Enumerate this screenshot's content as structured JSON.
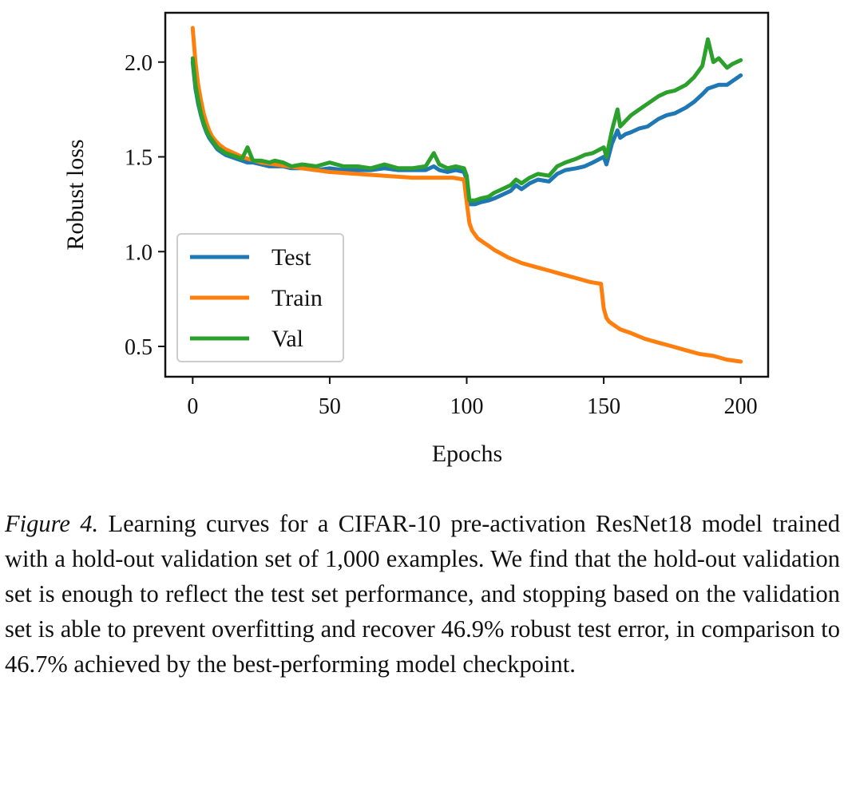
{
  "figure": {
    "caption_label": "Figure 4.",
    "caption_text": " Learning curves for a CIFAR-10 pre-activation ResNet18 model trained with a hold-out validation set of 1,000 examples. We find that the hold-out validation set is enough to reflect the test set performance, and stopping based on the validation set is able to prevent overfitting and recover 46.9% robust test error, in comparison to 46.7% achieved by the best-performing model checkpoint."
  },
  "chart_data": {
    "type": "line",
    "title": "",
    "xlabel": "Epochs",
    "ylabel": "Robust loss",
    "xlim": [
      -10,
      210
    ],
    "ylim": [
      0.34,
      2.26
    ],
    "xticks": [
      0,
      50,
      100,
      150,
      200
    ],
    "xtick_labels": [
      "0",
      "50",
      "100",
      "150",
      "200"
    ],
    "yticks": [
      0.5,
      1.0,
      1.5,
      2.0
    ],
    "ytick_labels": [
      "0.5",
      "1.0",
      "1.5",
      "2.0"
    ],
    "grid": false,
    "legend_position": "lower-left",
    "series": [
      {
        "name": "Test",
        "color": "#1f77b4",
        "x": [
          0,
          1,
          2,
          3,
          4,
          5,
          6,
          7,
          8,
          9,
          10,
          12,
          14,
          16,
          18,
          20,
          22,
          25,
          28,
          30,
          33,
          36,
          40,
          45,
          50,
          55,
          60,
          65,
          70,
          75,
          80,
          85,
          88,
          90,
          93,
          96,
          99,
          100,
          101,
          103,
          105,
          108,
          110,
          113,
          116,
          118,
          120,
          123,
          126,
          130,
          133,
          136,
          140,
          143,
          146,
          150,
          151,
          153,
          155,
          156,
          158,
          160,
          163,
          166,
          170,
          173,
          176,
          180,
          183,
          186,
          188,
          190,
          192,
          195,
          197,
          200
        ],
        "y": [
          2.0,
          1.86,
          1.78,
          1.72,
          1.67,
          1.63,
          1.6,
          1.58,
          1.56,
          1.54,
          1.53,
          1.51,
          1.5,
          1.49,
          1.48,
          1.47,
          1.47,
          1.46,
          1.45,
          1.45,
          1.45,
          1.44,
          1.44,
          1.43,
          1.44,
          1.43,
          1.43,
          1.43,
          1.44,
          1.43,
          1.43,
          1.43,
          1.45,
          1.43,
          1.42,
          1.43,
          1.42,
          1.38,
          1.25,
          1.25,
          1.26,
          1.27,
          1.28,
          1.3,
          1.32,
          1.35,
          1.33,
          1.36,
          1.38,
          1.37,
          1.41,
          1.43,
          1.44,
          1.45,
          1.47,
          1.5,
          1.46,
          1.57,
          1.64,
          1.6,
          1.62,
          1.63,
          1.65,
          1.66,
          1.7,
          1.72,
          1.73,
          1.76,
          1.79,
          1.83,
          1.86,
          1.87,
          1.88,
          1.88,
          1.9,
          1.93
        ]
      },
      {
        "name": "Train",
        "color": "#ff7f0e",
        "x": [
          0,
          1,
          2,
          3,
          4,
          5,
          6,
          7,
          8,
          10,
          12,
          15,
          18,
          20,
          25,
          30,
          35,
          40,
          45,
          50,
          60,
          70,
          80,
          90,
          95,
          99,
          100,
          101,
          102,
          104,
          106,
          108,
          110,
          115,
          120,
          125,
          130,
          135,
          140,
          145,
          149,
          150,
          151,
          152,
          154,
          156,
          160,
          165,
          170,
          175,
          180,
          185,
          190,
          195,
          200
        ],
        "y": [
          2.18,
          2.0,
          1.88,
          1.8,
          1.73,
          1.68,
          1.64,
          1.61,
          1.59,
          1.56,
          1.54,
          1.52,
          1.5,
          1.49,
          1.47,
          1.46,
          1.45,
          1.44,
          1.43,
          1.42,
          1.41,
          1.4,
          1.39,
          1.39,
          1.39,
          1.38,
          1.26,
          1.15,
          1.11,
          1.07,
          1.05,
          1.03,
          1.01,
          0.97,
          0.94,
          0.92,
          0.9,
          0.88,
          0.86,
          0.84,
          0.83,
          0.7,
          0.65,
          0.63,
          0.61,
          0.59,
          0.57,
          0.54,
          0.52,
          0.5,
          0.48,
          0.46,
          0.45,
          0.43,
          0.42
        ]
      },
      {
        "name": "Val",
        "color": "#2ca02c",
        "x": [
          0,
          1,
          2,
          3,
          4,
          5,
          6,
          7,
          8,
          9,
          10,
          12,
          14,
          16,
          18,
          20,
          22,
          25,
          28,
          30,
          33,
          36,
          40,
          45,
          50,
          55,
          60,
          65,
          70,
          75,
          80,
          85,
          88,
          90,
          93,
          96,
          99,
          100,
          101,
          103,
          105,
          108,
          110,
          113,
          116,
          118,
          120,
          123,
          126,
          130,
          133,
          136,
          140,
          143,
          146,
          150,
          151,
          153,
          155,
          156,
          158,
          160,
          163,
          166,
          170,
          173,
          176,
          180,
          183,
          186,
          188,
          190,
          192,
          195,
          197,
          200
        ],
        "y": [
          2.02,
          1.88,
          1.8,
          1.73,
          1.68,
          1.64,
          1.61,
          1.59,
          1.57,
          1.55,
          1.54,
          1.52,
          1.51,
          1.5,
          1.49,
          1.55,
          1.48,
          1.48,
          1.47,
          1.48,
          1.47,
          1.45,
          1.46,
          1.45,
          1.47,
          1.45,
          1.45,
          1.44,
          1.46,
          1.44,
          1.44,
          1.45,
          1.52,
          1.46,
          1.44,
          1.45,
          1.44,
          1.4,
          1.27,
          1.27,
          1.28,
          1.29,
          1.31,
          1.33,
          1.35,
          1.38,
          1.36,
          1.39,
          1.41,
          1.4,
          1.45,
          1.47,
          1.49,
          1.51,
          1.52,
          1.55,
          1.5,
          1.64,
          1.75,
          1.66,
          1.69,
          1.72,
          1.75,
          1.78,
          1.82,
          1.84,
          1.85,
          1.88,
          1.92,
          1.98,
          2.12,
          2.0,
          2.02,
          1.97,
          1.99,
          2.01
        ]
      }
    ]
  }
}
